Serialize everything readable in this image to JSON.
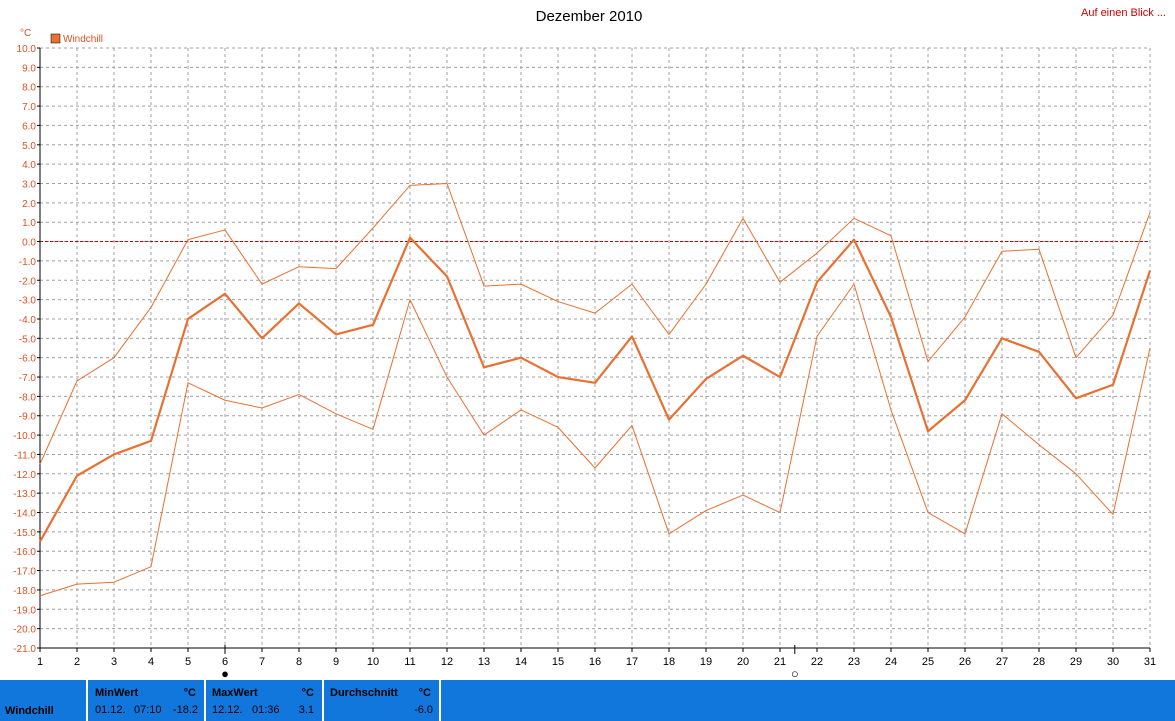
{
  "header": {
    "title": "Dezember 2010",
    "link": "Auf einen Blick ..."
  },
  "legend": {
    "label": "Windchill",
    "color": "#e87030"
  },
  "markers": {
    "moon_new": "●",
    "moon_full": "○"
  },
  "chart_data": {
    "type": "line",
    "title": "Dezember 2010",
    "ylabel": "°C",
    "ylim": [
      -21,
      10
    ],
    "yticks": [
      "10.0",
      "9.0",
      "8.0",
      "7.0",
      "6.0",
      "5.0",
      "4.0",
      "3.0",
      "2.0",
      "1.0",
      "0.0",
      "-1.0",
      "-2.0",
      "-3.0",
      "-4.0",
      "-5.0",
      "-6.0",
      "-7.0",
      "-8.0",
      "-9.0",
      "-10.0",
      "-11.0",
      "-12.0",
      "-13.0",
      "-14.0",
      "-15.0",
      "-16.0",
      "-17.0",
      "-18.0",
      "-19.0",
      "-20.0",
      "-21.0"
    ],
    "x": [
      1,
      2,
      3,
      4,
      5,
      6,
      7,
      8,
      9,
      10,
      11,
      12,
      13,
      14,
      15,
      16,
      17,
      18,
      19,
      20,
      21,
      22,
      23,
      24,
      25,
      26,
      27,
      28,
      29,
      30,
      31
    ],
    "grid": true,
    "legend_position": "top-left",
    "reference_line": 0,
    "series": [
      {
        "name": "Windchill",
        "role": "avg",
        "values": [
          -15.5,
          -12.1,
          -11.0,
          -10.3,
          -4.0,
          -2.7,
          -5.0,
          -3.2,
          -4.8,
          -4.3,
          0.2,
          -1.8,
          -6.5,
          -6.0,
          -7.0,
          -7.3,
          -4.9,
          -9.2,
          -7.1,
          -5.9,
          -7.0,
          -2.1,
          0.1,
          -3.9,
          -9.8,
          -8.2,
          -5.0,
          -5.7,
          -8.1,
          -7.4,
          -1.5
        ]
      },
      {
        "role": "max",
        "values": [
          -11.5,
          -7.2,
          -6.0,
          -3.4,
          0.1,
          0.6,
          -2.2,
          -1.3,
          -1.4,
          0.7,
          2.9,
          3.0,
          -2.3,
          -2.2,
          -3.1,
          -3.7,
          -2.2,
          -4.8,
          -2.2,
          1.2,
          -2.1,
          -0.6,
          1.2,
          0.3,
          -6.2,
          -3.9,
          -0.5,
          -0.4,
          -6.0,
          -3.8,
          1.5
        ]
      },
      {
        "role": "min",
        "values": [
          -18.3,
          -17.7,
          -17.6,
          -16.8,
          -7.3,
          -8.2,
          -8.6,
          -7.9,
          -8.9,
          -9.7,
          -3.0,
          -7.0,
          -10.0,
          -8.7,
          -9.6,
          -11.7,
          -9.5,
          -15.1,
          -13.9,
          -13.1,
          -14.0,
          -4.9,
          -2.2,
          -8.7,
          -14.0,
          -15.1,
          -8.9,
          -10.5,
          -12.0,
          -14.1,
          -5.5
        ]
      }
    ],
    "events": [
      {
        "x": 6,
        "type": "new-moon"
      },
      {
        "x": 21.4,
        "type": "full-moon"
      }
    ]
  },
  "summary": {
    "label": "Windchill",
    "min": {
      "header": "MinWert",
      "unit": "°C",
      "date": "01.12.",
      "time": "07:10",
      "value": "-18.2"
    },
    "max": {
      "header": "MaxWert",
      "unit": "°C",
      "date": "12.12.",
      "time": "01:36",
      "value": "3.1"
    },
    "avg": {
      "header": "Durchschnitt",
      "unit": "°C",
      "value": "-6.0"
    },
    "bar_color": "#1177dd"
  }
}
